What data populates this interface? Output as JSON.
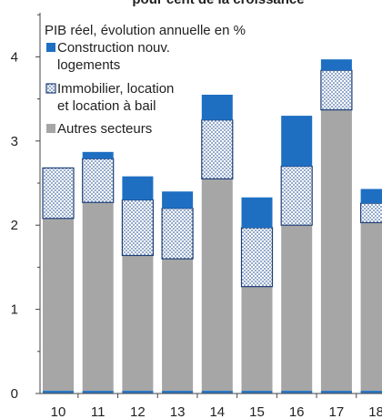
{
  "chart_data": {
    "type": "bar",
    "title": "pour cent de la croissance",
    "subtitle": "PIB réel, évolution annuelle en %",
    "categories": [
      "10",
      "11",
      "12",
      "13",
      "14",
      "15",
      "16",
      "17",
      "18"
    ],
    "ylim": [
      0,
      4.5
    ],
    "yticks": [
      0,
      1,
      2,
      3,
      4
    ],
    "series": [
      {
        "name": "Autres secteurs",
        "values": [
          2.08,
          2.27,
          1.64,
          1.6,
          2.55,
          1.27,
          2.0,
          3.37,
          2.03
        ],
        "color": "#a6a6a6"
      },
      {
        "name": "Immobilier, location et location à bail",
        "values": [
          0.6,
          0.52,
          0.66,
          0.6,
          0.7,
          0.7,
          0.7,
          0.47,
          0.23
        ],
        "color": "#1f4e9c",
        "pattern": "dotted"
      },
      {
        "name": "Construction nouv. logements",
        "values": [
          0.0,
          0.08,
          0.28,
          0.2,
          0.3,
          0.36,
          0.6,
          0.13,
          0.17
        ],
        "color": "#1e6fc2"
      }
    ],
    "legend": {
      "position": "top-left",
      "entries": [
        {
          "label_lines": [
            "Construction nouv.",
            "logements"
          ]
        },
        {
          "label_lines": [
            "Immobilier, location",
            "et location à bail"
          ]
        },
        {
          "label_lines": [
            "Autres secteurs"
          ]
        }
      ]
    },
    "grid": false
  }
}
